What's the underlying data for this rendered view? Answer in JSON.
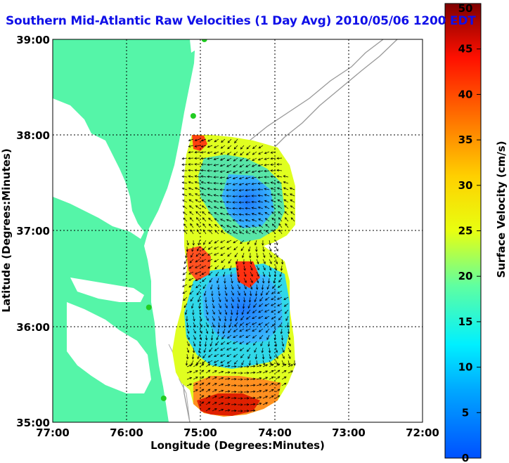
{
  "title": "Southern Mid-Atlantic Raw Velocities (1 Day Avg) 2010/05/06 1200 EDT",
  "xlabel": "Longitude (Degrees:Minutes)",
  "ylabel": "Latitude (Degrees:Minutes)",
  "colorbar_label": "Surface Velocity (cm/s)",
  "x_ticks": [
    "77:00",
    "76:00",
    "75:00",
    "74:00",
    "73:00",
    "72:00"
  ],
  "y_ticks": [
    "39:00",
    "38:00",
    "37:00",
    "36:00",
    "35:00"
  ],
  "colorbar_ticks": [
    "0",
    "5",
    "10",
    "15",
    "20",
    "25",
    "30",
    "35",
    "40",
    "45",
    "50"
  ],
  "colors": {
    "land": "#55f5a8",
    "title": "#1010e8",
    "station": "#22cc22"
  },
  "chart_data": {
    "type": "heatmap",
    "xlim": [
      -77,
      -72
    ],
    "ylim": [
      35,
      39
    ],
    "colorbar_range": [
      0,
      50
    ],
    "colorbar_units": "cm/s",
    "stations": [
      {
        "lon": -74.95,
        "lat": 39.0
      },
      {
        "lon": -75.1,
        "lat": 38.2
      },
      {
        "lon": -75.7,
        "lat": 36.2
      },
      {
        "lon": -75.5,
        "lat": 35.25
      }
    ]
  }
}
